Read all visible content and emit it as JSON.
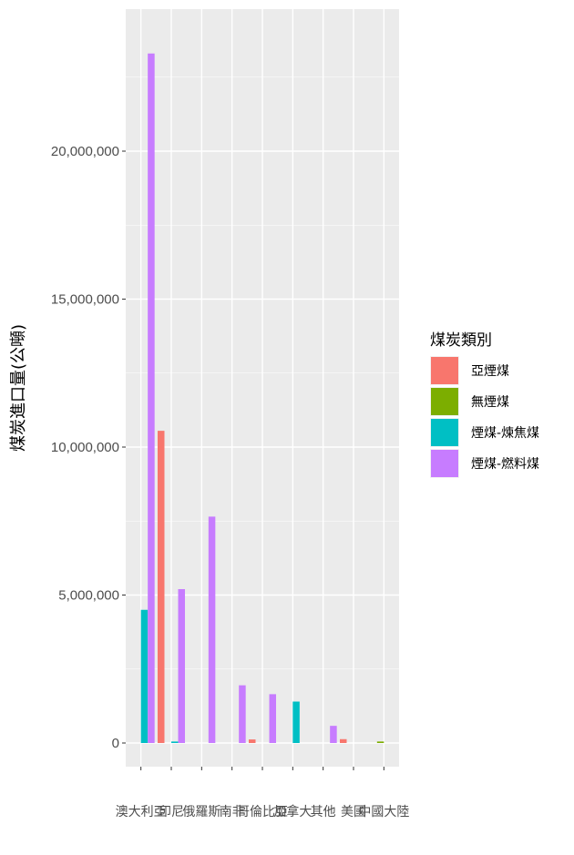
{
  "chart_data": {
    "type": "bar",
    "ylabel": "煤炭進口量(公噸)",
    "xlabel": "",
    "ylim": [
      -800000,
      24800000
    ],
    "yticks": [
      0,
      5000000,
      10000000,
      15000000,
      20000000
    ],
    "ytick_labels": [
      "0",
      "5,000,000",
      "10,000,000",
      "15,000,000",
      "20,000,000"
    ],
    "categories": [
      "澳大利亞",
      "印尼",
      "俄羅斯",
      "南非",
      "哥倫比亞",
      "加拿大",
      "其他",
      "美國",
      "中國大陸"
    ],
    "legend_title": "煤炭類別",
    "legend_position": "right",
    "series": [
      {
        "name": "亞煙煤",
        "color": "#F8766D",
        "values": [
          null,
          10550000,
          null,
          null,
          120000,
          null,
          null,
          130000,
          null
        ]
      },
      {
        "name": "無煙煤",
        "color": "#7CAE00",
        "values": [
          null,
          null,
          null,
          null,
          null,
          null,
          null,
          null,
          50000
        ]
      },
      {
        "name": "煙煤-煉焦煤",
        "color": "#00BFC4",
        "values": [
          4500000,
          50000,
          null,
          null,
          null,
          1400000,
          null,
          null,
          null
        ]
      },
      {
        "name": "煙煤-燃料煤",
        "color": "#C77CFF",
        "values": [
          23300000,
          5200000,
          7650000,
          1950000,
          1650000,
          null,
          580000,
          null,
          null
        ]
      }
    ],
    "panel_background": "#EBEBEB",
    "grid": true
  }
}
